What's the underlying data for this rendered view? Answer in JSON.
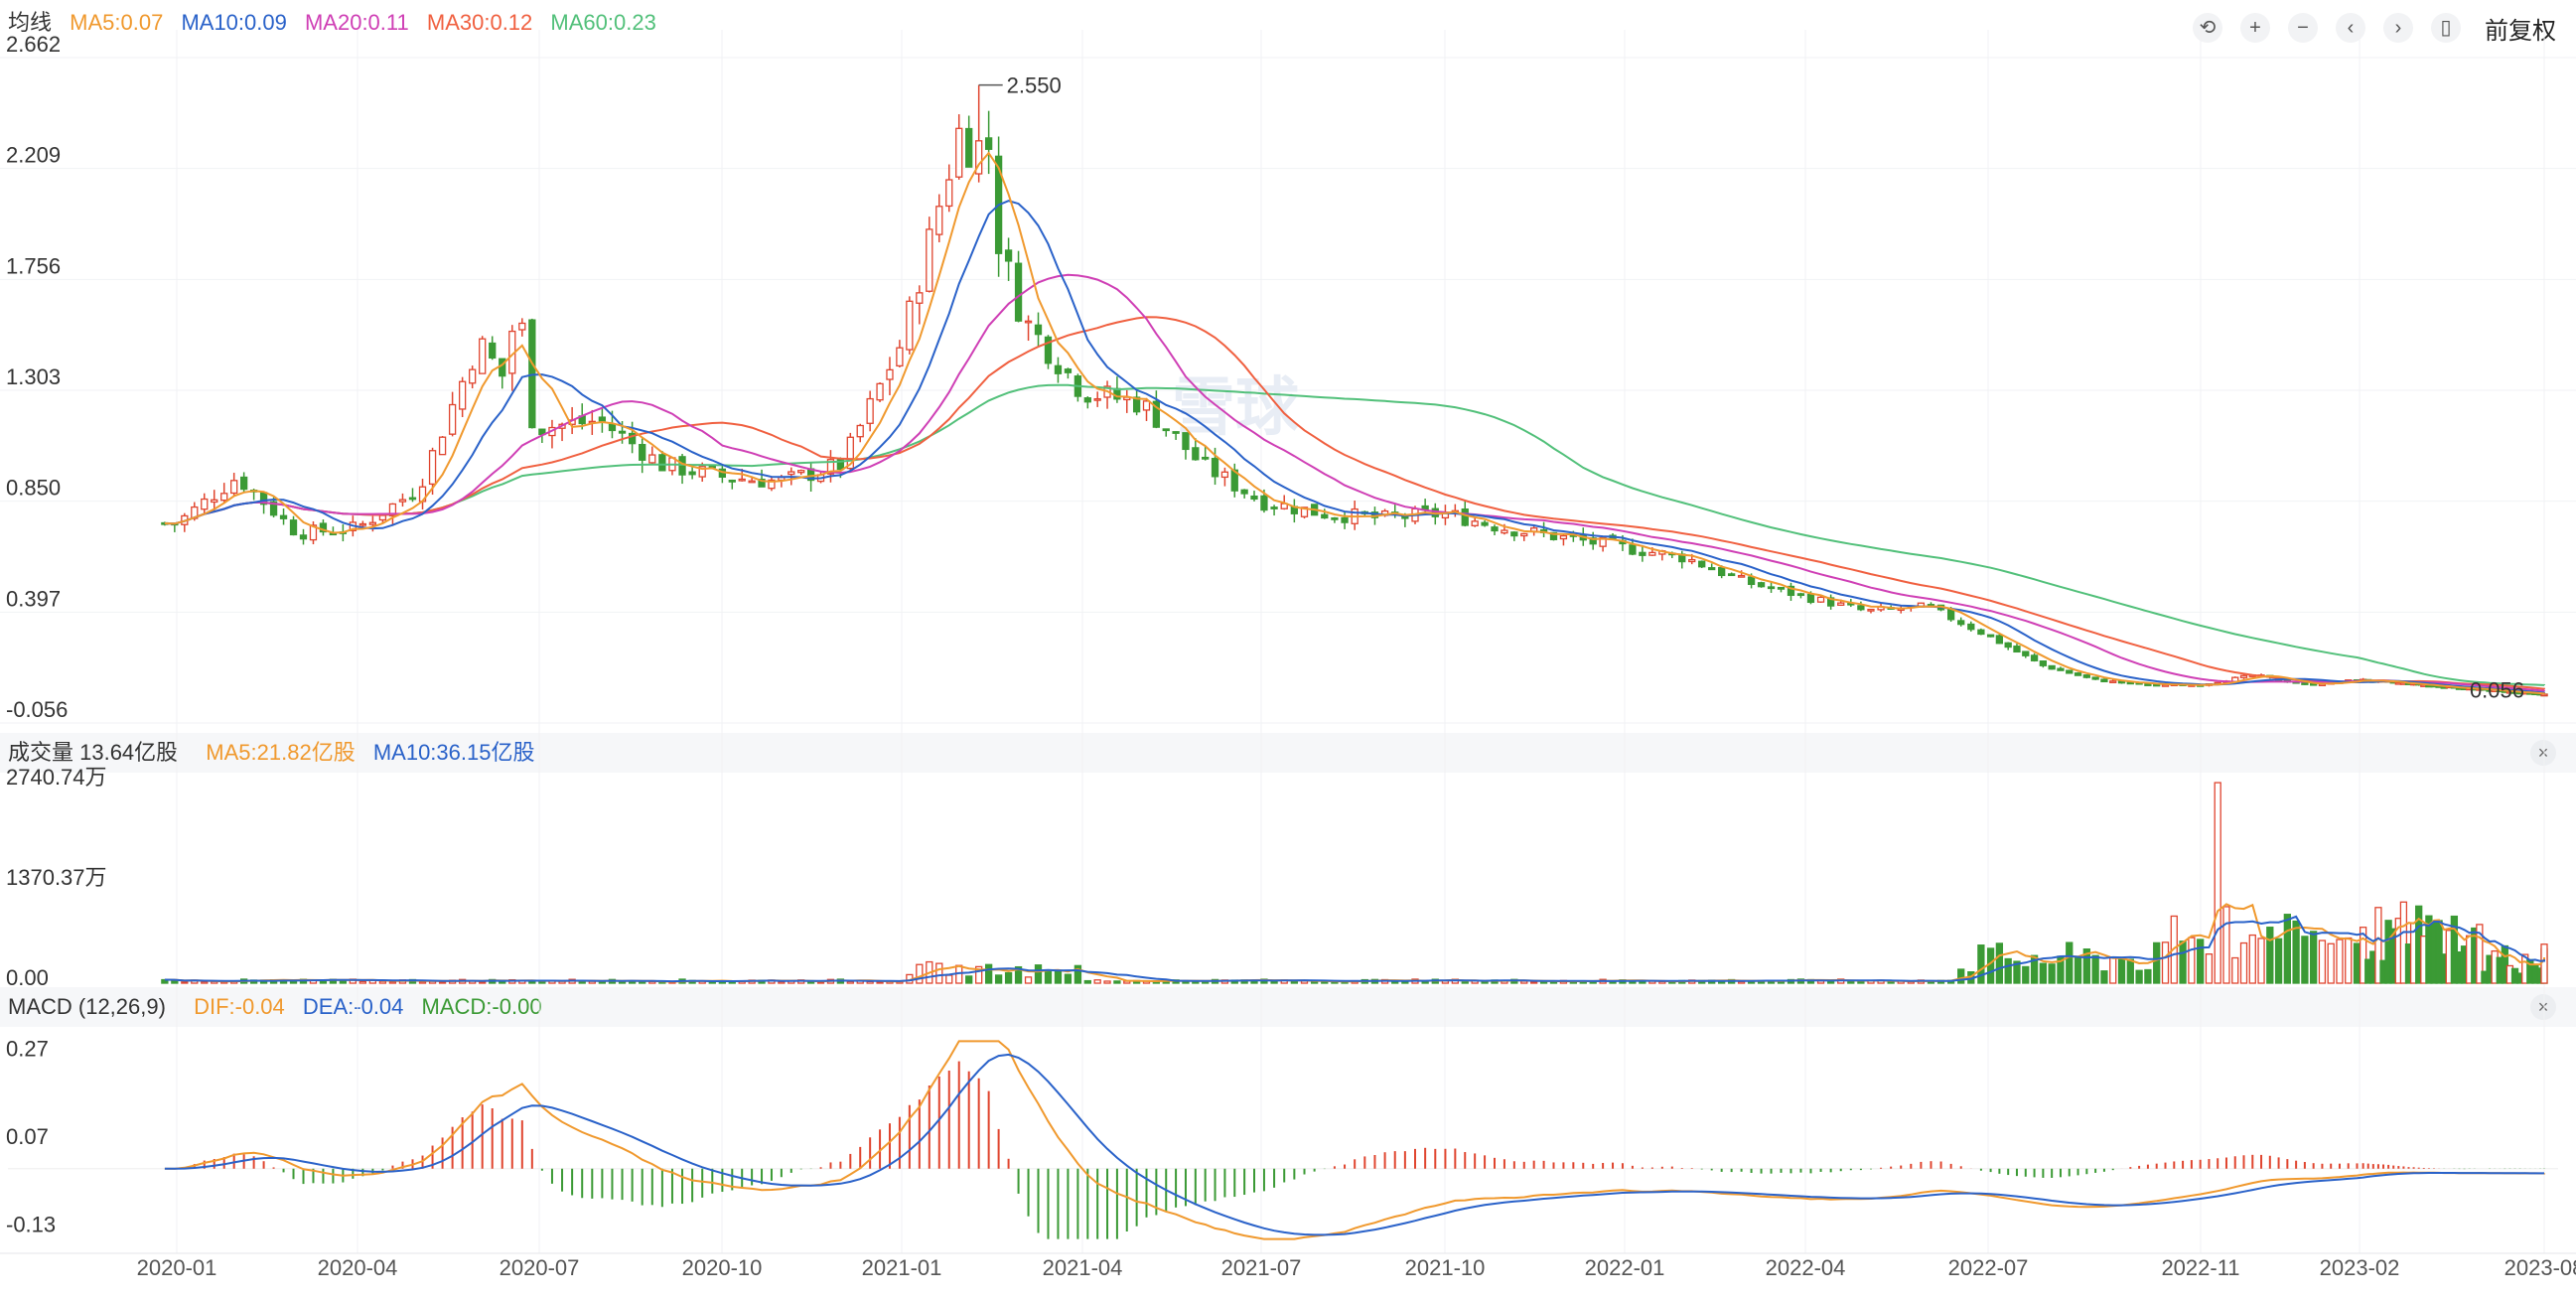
{
  "toolbar": {
    "icons": [
      "undo-icon",
      "zoom-in-icon",
      "zoom-out-icon",
      "scroll-left-icon",
      "scroll-right-icon",
      "candle-type-icon"
    ],
    "fq_label": "前复权"
  },
  "colors": {
    "up": "#e0452f",
    "down": "#3b9a35",
    "ma5": "#f0992e",
    "ma10": "#2a62c9",
    "ma20": "#cf3fb5",
    "ma30": "#f06040",
    "ma60": "#52c07a"
  },
  "price_legend": {
    "title": "均线",
    "ma5": "MA5:0.07",
    "ma10": "MA10:0.09",
    "ma20": "MA20:0.11",
    "ma30": "MA30:0.12",
    "ma60": "MA60:0.23"
  },
  "volume_legend": {
    "title": "成交量 13.64亿股",
    "ma5": "MA5:21.82亿股",
    "ma10": "MA10:36.15亿股"
  },
  "macd_legend": {
    "title": "MACD (12,26,9)",
    "dif": "DIF:-0.04",
    "dea": "DEA:-0.04",
    "macd": "MACD:-0.00"
  },
  "watermark": "雪球",
  "chart_data": [
    {
      "type": "candlestick",
      "title": "均线",
      "x_ticks": [
        "2020-01",
        "2020-04",
        "2020-07",
        "2020-10",
        "2021-01",
        "2021-04",
        "2021-07",
        "2021-10",
        "2022-01",
        "2022-04",
        "2022-07",
        "2022-11",
        "2023-02",
        "2023-08"
      ],
      "y_ticks": [
        "2.662",
        "2.209",
        "1.756",
        "1.303",
        "0.850",
        "0.397",
        "-0.056"
      ],
      "ylim": [
        -0.056,
        2.662
      ],
      "annotations": {
        "max": "2.550",
        "min": "0.056"
      },
      "key_points": [
        {
          "x": "2020-01",
          "close": 0.76
        },
        {
          "x": "2020-02",
          "close": 0.95
        },
        {
          "x": "2020-03",
          "close": 0.72
        },
        {
          "x": "2020-04",
          "close": 0.74
        },
        {
          "x": "2020-05",
          "close": 0.9
        },
        {
          "x": "2020-06",
          "close": 1.5
        },
        {
          "x": "2020-07",
          "close": 1.15
        },
        {
          "x": "2020-08",
          "close": 1.18
        },
        {
          "x": "2020-09",
          "close": 1.0
        },
        {
          "x": "2020-10",
          "close": 0.95
        },
        {
          "x": "2020-11",
          "close": 0.93
        },
        {
          "x": "2020-12",
          "close": 1.0
        },
        {
          "x": "2021-01",
          "close": 1.5
        },
        {
          "x": "2021-02",
          "close": 2.4
        },
        {
          "x": "2021-03",
          "close": 1.6
        },
        {
          "x": "2021-04",
          "close": 1.3
        },
        {
          "x": "2021-05",
          "close": 1.25
        },
        {
          "x": "2021-06",
          "close": 1.0
        },
        {
          "x": "2021-07",
          "close": 0.85
        },
        {
          "x": "2021-08",
          "close": 0.8
        },
        {
          "x": "2021-09",
          "close": 0.78
        },
        {
          "x": "2021-10",
          "close": 0.8
        },
        {
          "x": "2021-11",
          "close": 0.74
        },
        {
          "x": "2021-12",
          "close": 0.7
        },
        {
          "x": "2022-01",
          "close": 0.66
        },
        {
          "x": "2022-02",
          "close": 0.62
        },
        {
          "x": "2022-03",
          "close": 0.52
        },
        {
          "x": "2022-04",
          "close": 0.46
        },
        {
          "x": "2022-05",
          "close": 0.4
        },
        {
          "x": "2022-06",
          "close": 0.42
        },
        {
          "x": "2022-07",
          "close": 0.3
        },
        {
          "x": "2022-08",
          "close": 0.18
        },
        {
          "x": "2022-09",
          "close": 0.12
        },
        {
          "x": "2022-10",
          "close": 0.1
        },
        {
          "x": "2022-11",
          "close": 0.1
        },
        {
          "x": "2022-12",
          "close": 0.14
        },
        {
          "x": "2023-01",
          "close": 0.1
        },
        {
          "x": "2023-02",
          "close": 0.12
        },
        {
          "x": "2023-04",
          "close": 0.1
        },
        {
          "x": "2023-06",
          "close": 0.08
        },
        {
          "x": "2023-08",
          "close": 0.06
        }
      ]
    },
    {
      "type": "bar",
      "title": "成交量",
      "y_ticks": [
        "2740.74万",
        "1370.37万",
        "0.00"
      ],
      "ylim": [
        0,
        2740.74
      ],
      "series": [
        {
          "name": "MA5"
        },
        {
          "name": "MA10"
        }
      ]
    },
    {
      "type": "bar",
      "title": "MACD (12,26,9)",
      "y_ticks": [
        "0.27",
        "0.07",
        "-0.13"
      ],
      "ylim": [
        -0.17,
        0.3
      ],
      "series": [
        {
          "name": "DIF"
        },
        {
          "name": "DEA"
        },
        {
          "name": "MACD"
        }
      ]
    }
  ]
}
